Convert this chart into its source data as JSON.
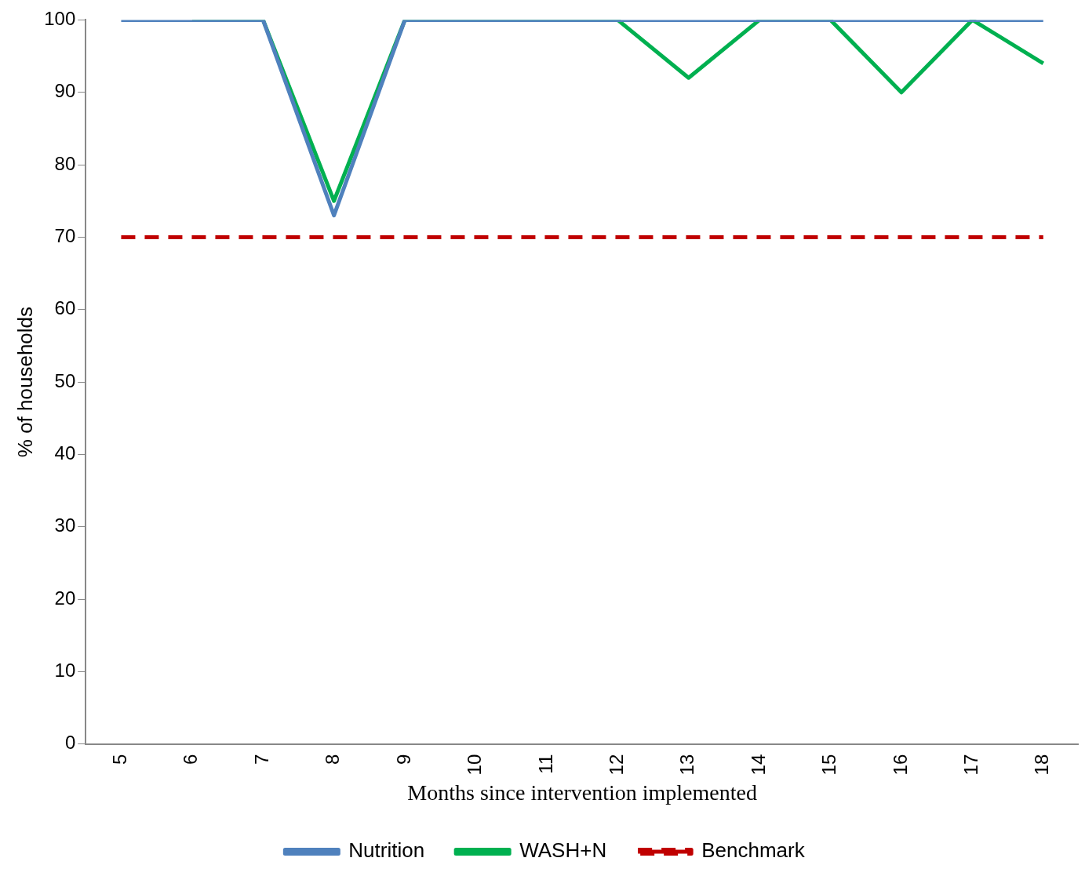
{
  "chart_data": {
    "type": "line",
    "xlabel": "Months since intervention implemented",
    "ylabel": "% of households",
    "categories": [
      "5",
      "6",
      "7",
      "8",
      "9",
      "10",
      "11",
      "12",
      "13",
      "14",
      "15",
      "16",
      "17",
      "18"
    ],
    "series": [
      {
        "name": "Nutrition",
        "color": "#4f81bd",
        "values": [
          100,
          100,
          100,
          73,
          100,
          100,
          100,
          100,
          100,
          100,
          100,
          100,
          100,
          100
        ]
      },
      {
        "name": "WASH+N",
        "color": "#00b050",
        "values": [
          null,
          100,
          100,
          75,
          100,
          100,
          100,
          100,
          92,
          100,
          100,
          90,
          100,
          94
        ]
      },
      {
        "name": "Benchmark",
        "color": "#c00000",
        "line_style": "dashed",
        "values": [
          70,
          70,
          70,
          70,
          70,
          70,
          70,
          70,
          70,
          70,
          70,
          70,
          70,
          70
        ]
      }
    ],
    "ylim": [
      0,
      100
    ],
    "yticks": [
      0,
      10,
      20,
      30,
      40,
      50,
      60,
      70,
      80,
      90,
      100
    ],
    "grid": false,
    "legend": "bottom",
    "marker": "none",
    "line_style": "solid"
  }
}
